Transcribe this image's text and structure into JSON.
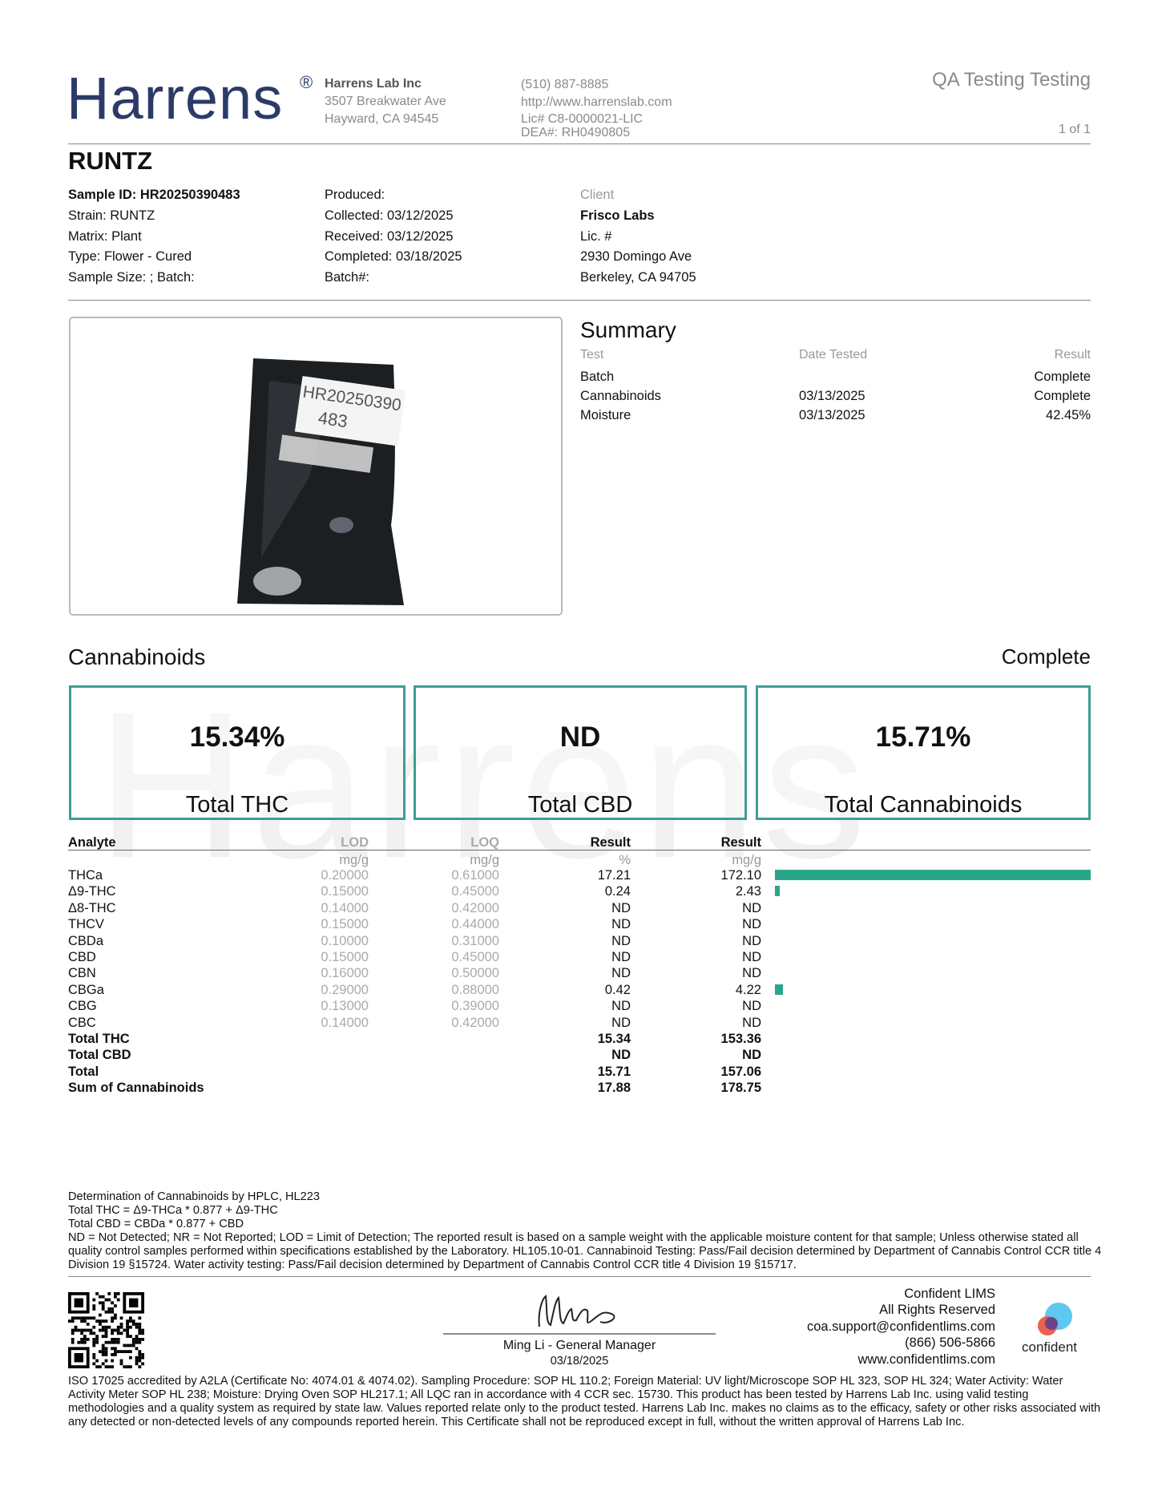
{
  "header": {
    "logo": "Harrens",
    "registered": "®",
    "company": "Harrens Lab Inc",
    "address_line1": "3507 Breakwater Ave",
    "address_line2": "Hayward, CA 94545",
    "phone": "(510) 887-8885",
    "website": "http://www.harrenslab.com",
    "license": "Lic# C8-0000021-LIC",
    "dea": "DEA#: RH0490805",
    "report_type": "QA Testing Testing",
    "page": "1 of 1"
  },
  "sample": {
    "name": "RUNTZ",
    "details": [
      "Sample ID: HR20250390483",
      "Strain: RUNTZ",
      "Matrix: Plant",
      "Type: Flower - Cured",
      "Sample Size: ; Batch:"
    ],
    "dates": [
      "Produced:",
      "Collected: 03/12/2025",
      "Received: 03/12/2025",
      "Completed: 03/18/2025",
      "Batch#:"
    ],
    "client_label": "Client",
    "client": [
      "Frisco Labs",
      "Lic. #",
      "2930 Domingo Ave",
      "Berkeley, CA 94705"
    ],
    "image_label": [
      "HR20250390",
      "483"
    ]
  },
  "summary": {
    "title": "Summary",
    "headers": [
      "Test",
      "Date Tested",
      "Result"
    ],
    "rows": [
      {
        "test": "Batch",
        "result": "Complete"
      },
      {
        "test": "Cannabinoids",
        "date": "03/13/2025",
        "result": "Complete"
      },
      {
        "test": "Moisture",
        "date": "03/13/2025",
        "result": "42.45%"
      }
    ]
  },
  "cannabinoids": {
    "title": "Cannabinoids",
    "status": "Complete",
    "totals": [
      {
        "value": "15.34%",
        "label": "Total THC"
      },
      {
        "value": "ND",
        "label": "Total CBD"
      },
      {
        "value": "15.71%",
        "label": "Total Cannabinoids"
      }
    ],
    "table": {
      "columns": [
        {
          "name": "Analyte"
        },
        {
          "name": "LOD",
          "unit": "mg/g"
        },
        {
          "name": "LOQ",
          "unit": "mg/g"
        },
        {
          "name": "Result",
          "unit": "%"
        },
        {
          "name": "Result",
          "unit": "mg/g"
        }
      ],
      "rows": [
        {
          "analyte": "THCa",
          "lod": "0.20000",
          "loq": "0.61000",
          "pct": "17.21",
          "mg_g": "172.10"
        },
        {
          "analyte": "Δ9-THC",
          "lod": "0.15000",
          "loq": "0.45000",
          "pct": "0.24",
          "mg_g": "2.43"
        },
        {
          "analyte": "Δ8-THC",
          "lod": "0.14000",
          "loq": "0.42000",
          "pct": "ND",
          "mg_g": "ND"
        },
        {
          "analyte": "THCV",
          "lod": "0.15000",
          "loq": "0.44000",
          "pct": "ND",
          "mg_g": "ND"
        },
        {
          "analyte": "CBDa",
          "lod": "0.10000",
          "loq": "0.31000",
          "pct": "ND",
          "mg_g": "ND"
        },
        {
          "analyte": "CBD",
          "lod": "0.15000",
          "loq": "0.45000",
          "pct": "ND",
          "mg_g": "ND"
        },
        {
          "analyte": "CBN",
          "lod": "0.16000",
          "loq": "0.50000",
          "pct": "ND",
          "mg_g": "ND"
        },
        {
          "analyte": "CBGa",
          "lod": "0.29000",
          "loq": "0.88000",
          "pct": "0.42",
          "mg_g": "4.22"
        },
        {
          "analyte": "CBG",
          "lod": "0.13000",
          "loq": "0.39000",
          "pct": "ND",
          "mg_g": "ND"
        },
        {
          "analyte": "CBC",
          "lod": "0.14000",
          "loq": "0.42000",
          "pct": "ND",
          "mg_g": "ND"
        }
      ],
      "totals": [
        {
          "analyte": "Total THC",
          "pct": "15.34",
          "mg_g": "153.36"
        },
        {
          "analyte": "Total CBD",
          "pct": "ND",
          "mg_g": "ND"
        },
        {
          "analyte": "Total",
          "pct": "15.71",
          "mg_g": "157.06"
        },
        {
          "analyte": "Sum of Cannabinoids",
          "pct": "17.88",
          "mg_g": "178.75"
        }
      ]
    }
  },
  "notes": [
    "Determination of Cannabinoids by HPLC, HL223",
    "Total THC = Δ9-THCa * 0.877 + Δ9-THC",
    "Total CBD = CBDa * 0.877 + CBD",
    "ND = Not Detected; NR = Not Reported; LOD = Limit of Detection; The reported result is based on a sample weight with the applicable moisture content for that sample; Unless otherwise stated all quality control samples performed within specifications established by the Laboratory. HL105.10-01. Cannabinoid Testing: Pass/Fail decision determined by Department of Cannabis Control CCR title 4 Division 19 §15724. Water activity testing: Pass/Fail decision determined by Department of Cannabis Control CCR title 4 Division 19 §15717."
  ],
  "signature": {
    "name": "Ming Li - General Manager",
    "date": "03/18/2025"
  },
  "lims": {
    "lines": [
      "Confident LIMS",
      "All Rights Reserved",
      "coa.support@confidentlims.com",
      "(866) 506-5866",
      "www.confidentlims.com"
    ],
    "logo": "confident"
  },
  "footer": "ISO 17025 accredited by A2LA (Certificate No: 4074.01 & 4074.02). Sampling Procedure: SOP HL 110.2; Foreign Material: UV light/Microscope SOP HL 323, SOP HL 324; Water Activity: Water Activity Meter SOP HL 238; Moisture: Drying Oven SOP HL217.1; All LQC ran in accordance with 4 CCR sec. 15730. This product has been tested by Harrens Lab Inc. using valid testing methodologies and a quality system as required by state law. Values reported relate only to the product tested. Harrens Lab Inc. makes no claims as to the efficacy, safety or other risks associated with any detected or non-detected levels of any compounds reported herein. This Certificate shall not be reproduced except in full, without the written approval of Harrens Lab Inc."
}
